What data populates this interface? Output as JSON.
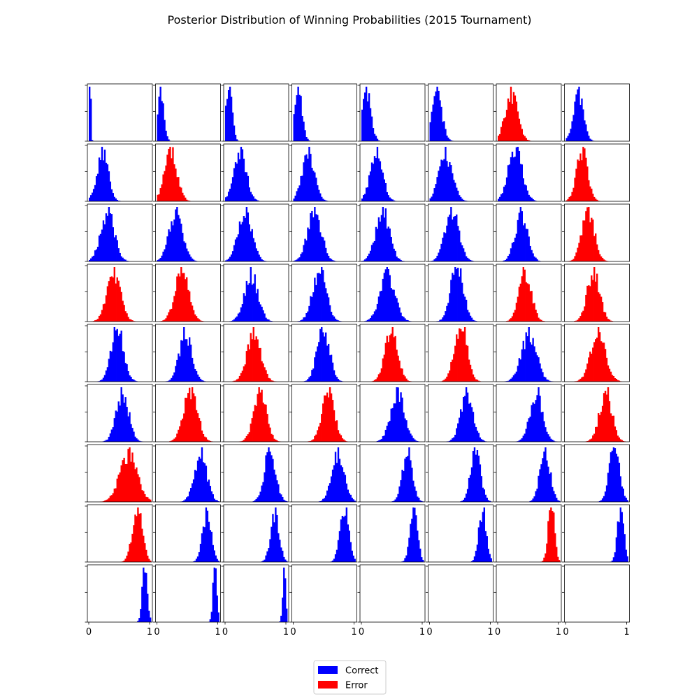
{
  "chart_data": {
    "type": "histogram-grid",
    "title": "Posterior Distribution of Winning Probabilities (2015 Tournament)",
    "grid": {
      "rows": 9,
      "cols": 8,
      "panels_with_data": 67
    },
    "xlim": [
      0,
      1
    ],
    "x_ticks": [
      "0",
      "1"
    ],
    "legend": {
      "placement": "bottom-center",
      "entries": [
        {
          "label": "Correct",
          "color": "#0000ff"
        },
        {
          "label": "Error",
          "color": "#ff0000"
        }
      ]
    },
    "panels": [
      {
        "mean": 0.02,
        "sd": 0.012,
        "outcome": "Correct"
      },
      {
        "mean": 0.06,
        "sd": 0.05,
        "outcome": "Correct"
      },
      {
        "mean": 0.06,
        "sd": 0.05,
        "outcome": "Correct"
      },
      {
        "mean": 0.08,
        "sd": 0.06,
        "outcome": "Correct"
      },
      {
        "mean": 0.08,
        "sd": 0.07,
        "outcome": "Correct"
      },
      {
        "mean": 0.12,
        "sd": 0.08,
        "outcome": "Correct"
      },
      {
        "mean": 0.22,
        "sd": 0.1,
        "outcome": "Error"
      },
      {
        "mean": 0.2,
        "sd": 0.08,
        "outcome": "Correct"
      },
      {
        "mean": 0.22,
        "sd": 0.09,
        "outcome": "Correct"
      },
      {
        "mean": 0.22,
        "sd": 0.1,
        "outcome": "Error"
      },
      {
        "mean": 0.24,
        "sd": 0.1,
        "outcome": "Correct"
      },
      {
        "mean": 0.24,
        "sd": 0.1,
        "outcome": "Correct"
      },
      {
        "mean": 0.24,
        "sd": 0.1,
        "outcome": "Correct"
      },
      {
        "mean": 0.26,
        "sd": 0.11,
        "outcome": "Correct"
      },
      {
        "mean": 0.28,
        "sd": 0.11,
        "outcome": "Correct"
      },
      {
        "mean": 0.26,
        "sd": 0.09,
        "outcome": "Error"
      },
      {
        "mean": 0.3,
        "sd": 0.11,
        "outcome": "Correct"
      },
      {
        "mean": 0.3,
        "sd": 0.11,
        "outcome": "Correct"
      },
      {
        "mean": 0.32,
        "sd": 0.11,
        "outcome": "Correct"
      },
      {
        "mean": 0.34,
        "sd": 0.11,
        "outcome": "Correct"
      },
      {
        "mean": 0.34,
        "sd": 0.11,
        "outcome": "Correct"
      },
      {
        "mean": 0.36,
        "sd": 0.11,
        "outcome": "Correct"
      },
      {
        "mean": 0.38,
        "sd": 0.1,
        "outcome": "Correct"
      },
      {
        "mean": 0.36,
        "sd": 0.1,
        "outcome": "Error"
      },
      {
        "mean": 0.4,
        "sd": 0.11,
        "outcome": "Error"
      },
      {
        "mean": 0.4,
        "sd": 0.11,
        "outcome": "Error"
      },
      {
        "mean": 0.42,
        "sd": 0.11,
        "outcome": "Correct"
      },
      {
        "mean": 0.42,
        "sd": 0.11,
        "outcome": "Correct"
      },
      {
        "mean": 0.42,
        "sd": 0.12,
        "outcome": "Correct"
      },
      {
        "mean": 0.44,
        "sd": 0.1,
        "outcome": "Correct"
      },
      {
        "mean": 0.44,
        "sd": 0.1,
        "outcome": "Error"
      },
      {
        "mean": 0.44,
        "sd": 0.1,
        "outcome": "Error"
      },
      {
        "mean": 0.46,
        "sd": 0.1,
        "outcome": "Correct"
      },
      {
        "mean": 0.46,
        "sd": 0.1,
        "outcome": "Correct"
      },
      {
        "mean": 0.46,
        "sd": 0.11,
        "outcome": "Error"
      },
      {
        "mean": 0.48,
        "sd": 0.1,
        "outcome": "Correct"
      },
      {
        "mean": 0.48,
        "sd": 0.1,
        "outcome": "Error"
      },
      {
        "mean": 0.5,
        "sd": 0.1,
        "outcome": "Error"
      },
      {
        "mean": 0.5,
        "sd": 0.12,
        "outcome": "Correct"
      },
      {
        "mean": 0.52,
        "sd": 0.12,
        "outcome": "Error"
      },
      {
        "mean": 0.54,
        "sd": 0.1,
        "outcome": "Correct"
      },
      {
        "mean": 0.54,
        "sd": 0.11,
        "outcome": "Error"
      },
      {
        "mean": 0.56,
        "sd": 0.1,
        "outcome": "Error"
      },
      {
        "mean": 0.56,
        "sd": 0.1,
        "outcome": "Error"
      },
      {
        "mean": 0.58,
        "sd": 0.11,
        "outcome": "Correct"
      },
      {
        "mean": 0.6,
        "sd": 0.1,
        "outcome": "Correct"
      },
      {
        "mean": 0.62,
        "sd": 0.1,
        "outcome": "Correct"
      },
      {
        "mean": 0.64,
        "sd": 0.1,
        "outcome": "Error"
      },
      {
        "mean": 0.64,
        "sd": 0.14,
        "outcome": "Error"
      },
      {
        "mean": 0.7,
        "sd": 0.1,
        "outcome": "Correct"
      },
      {
        "mean": 0.72,
        "sd": 0.09,
        "outcome": "Correct"
      },
      {
        "mean": 0.72,
        "sd": 0.1,
        "outcome": "Correct"
      },
      {
        "mean": 0.74,
        "sd": 0.08,
        "outcome": "Correct"
      },
      {
        "mean": 0.74,
        "sd": 0.08,
        "outcome": "Correct"
      },
      {
        "mean": 0.76,
        "sd": 0.08,
        "outcome": "Correct"
      },
      {
        "mean": 0.78,
        "sd": 0.08,
        "outcome": "Correct"
      },
      {
        "mean": 0.78,
        "sd": 0.08,
        "outcome": "Error"
      },
      {
        "mean": 0.8,
        "sd": 0.07,
        "outcome": "Correct"
      },
      {
        "mean": 0.8,
        "sd": 0.07,
        "outcome": "Correct"
      },
      {
        "mean": 0.82,
        "sd": 0.07,
        "outcome": "Correct"
      },
      {
        "mean": 0.84,
        "sd": 0.06,
        "outcome": "Correct"
      },
      {
        "mean": 0.85,
        "sd": 0.06,
        "outcome": "Correct"
      },
      {
        "mean": 0.86,
        "sd": 0.05,
        "outcome": "Error"
      },
      {
        "mean": 0.88,
        "sd": 0.05,
        "outcome": "Correct"
      },
      {
        "mean": 0.9,
        "sd": 0.04,
        "outcome": "Correct"
      },
      {
        "mean": 0.93,
        "sd": 0.03,
        "outcome": "Correct"
      },
      {
        "mean": 0.95,
        "sd": 0.025,
        "outcome": "Correct"
      }
    ]
  }
}
